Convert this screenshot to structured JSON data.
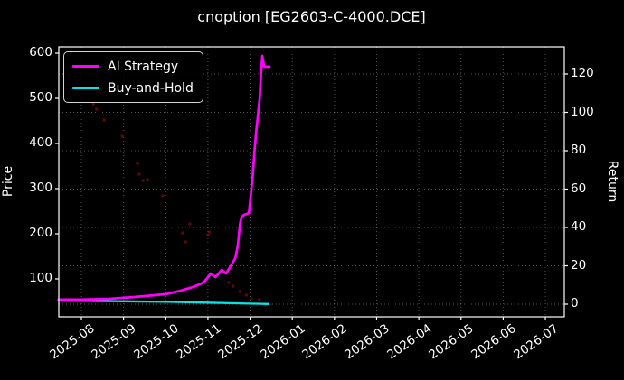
{
  "chart_data": {
    "type": "line",
    "title": "cnoption [EG2603-C-4000.DCE]",
    "ylabel_left": "Price",
    "ylabel_right": "Return",
    "x_tick_labels": [
      "2025-08",
      "2025-09",
      "2025-10",
      "2025-11",
      "2025-12",
      "2026-01",
      "2026-02",
      "2026-03",
      "2026-04",
      "2026-05",
      "2026-06",
      "2026-07"
    ],
    "y_ticks_left": [
      100,
      200,
      300,
      400,
      500,
      600
    ],
    "y_ticks_right": [
      0,
      20,
      40,
      60,
      80,
      100,
      120
    ],
    "xlim_months": [
      -0.55,
      11.45
    ],
    "ylim_left": [
      14,
      614
    ],
    "ylim_right": [
      -6.6,
      134
    ],
    "grid": "dotted",
    "colors": {
      "background": "#000000",
      "text": "#ffffff",
      "grid": "rgba(255,255,255,0.32)",
      "axis_frame": "#ffffff"
    },
    "series": [
      {
        "name": "AI Strategy",
        "color": "#ff00ff",
        "axis": "right",
        "x": [
          -0.54,
          0,
          0.64,
          1.29,
          2.0,
          2.36,
          2.64,
          2.9,
          3.07,
          3.18,
          3.33,
          3.43,
          3.54,
          3.65,
          3.71,
          3.76,
          3.8,
          3.86,
          3.97,
          4.01,
          4.06,
          4.1,
          4.14,
          4.18,
          4.23,
          4.25,
          4.29,
          4.31,
          4.33,
          4.46
        ],
        "y": [
          2.4,
          2.4,
          2.8,
          3.8,
          5.2,
          7.1,
          8.9,
          11.3,
          16.0,
          14.1,
          17.9,
          16.0,
          19.8,
          24.0,
          30.6,
          41.9,
          45.6,
          46.6,
          47.5,
          55.1,
          66.4,
          78.6,
          88.9,
          97.4,
          107.8,
          117.2,
          129.4,
          126.6,
          123.8,
          123.8
        ]
      },
      {
        "name": "Buy-and-Hold",
        "color": "#00e5e5",
        "axis": "right",
        "x": [
          -0.54,
          0,
          1,
          2,
          3,
          4,
          4.44
        ],
        "y": [
          1.9,
          1.8,
          1.5,
          1.2,
          0.8,
          0.3,
          0.1
        ]
      },
      {
        "name": "price-dots",
        "type": "scatter",
        "color": "#b01414",
        "axis": "left",
        "x": [
          0.28,
          0.36,
          0.54,
          0.97,
          1.07,
          1.33,
          1.37,
          1.46,
          1.57,
          1.93,
          2.4,
          2.47,
          2.57,
          3.0,
          3.04,
          3.49,
          3.6,
          3.76,
          3.91,
          4.03,
          4.22
        ],
        "y": [
          488,
          476,
          452,
          416,
          506,
          356,
          332,
          318,
          320,
          284,
          202,
          182,
          222,
          198,
          204,
          92,
          84,
          72,
          64,
          56,
          54
        ]
      }
    ],
    "legend": {
      "position": "upper-left",
      "items": [
        {
          "label": "AI Strategy",
          "color": "#ff00ff"
        },
        {
          "label": "Buy-and-Hold",
          "color": "#00e5e5"
        }
      ]
    }
  }
}
